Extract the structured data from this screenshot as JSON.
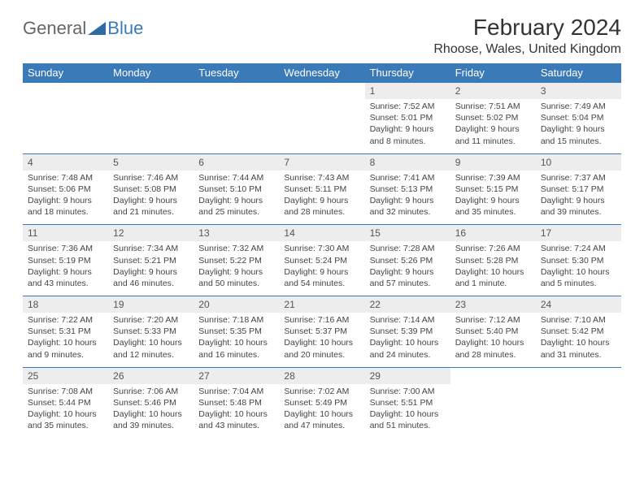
{
  "brand": {
    "part1": "General",
    "part2": "Blue"
  },
  "title": "February 2024",
  "location": "Rhoose, Wales, United Kingdom",
  "colors": {
    "header_bg": "#3a7ab8",
    "header_text": "#ffffff",
    "daynum_bg": "#ededed",
    "grid_border": "#3a7ab8",
    "text": "#333333"
  },
  "columns": [
    "Sunday",
    "Monday",
    "Tuesday",
    "Wednesday",
    "Thursday",
    "Friday",
    "Saturday"
  ],
  "weeks": [
    [
      null,
      null,
      null,
      null,
      {
        "n": "1",
        "sr": "7:52 AM",
        "ss": "5:01 PM",
        "dl": "Daylight: 9 hours and 8 minutes."
      },
      {
        "n": "2",
        "sr": "7:51 AM",
        "ss": "5:02 PM",
        "dl": "Daylight: 9 hours and 11 minutes."
      },
      {
        "n": "3",
        "sr": "7:49 AM",
        "ss": "5:04 PM",
        "dl": "Daylight: 9 hours and 15 minutes."
      }
    ],
    [
      {
        "n": "4",
        "sr": "7:48 AM",
        "ss": "5:06 PM",
        "dl": "Daylight: 9 hours and 18 minutes."
      },
      {
        "n": "5",
        "sr": "7:46 AM",
        "ss": "5:08 PM",
        "dl": "Daylight: 9 hours and 21 minutes."
      },
      {
        "n": "6",
        "sr": "7:44 AM",
        "ss": "5:10 PM",
        "dl": "Daylight: 9 hours and 25 minutes."
      },
      {
        "n": "7",
        "sr": "7:43 AM",
        "ss": "5:11 PM",
        "dl": "Daylight: 9 hours and 28 minutes."
      },
      {
        "n": "8",
        "sr": "7:41 AM",
        "ss": "5:13 PM",
        "dl": "Daylight: 9 hours and 32 minutes."
      },
      {
        "n": "9",
        "sr": "7:39 AM",
        "ss": "5:15 PM",
        "dl": "Daylight: 9 hours and 35 minutes."
      },
      {
        "n": "10",
        "sr": "7:37 AM",
        "ss": "5:17 PM",
        "dl": "Daylight: 9 hours and 39 minutes."
      }
    ],
    [
      {
        "n": "11",
        "sr": "7:36 AM",
        "ss": "5:19 PM",
        "dl": "Daylight: 9 hours and 43 minutes."
      },
      {
        "n": "12",
        "sr": "7:34 AM",
        "ss": "5:21 PM",
        "dl": "Daylight: 9 hours and 46 minutes."
      },
      {
        "n": "13",
        "sr": "7:32 AM",
        "ss": "5:22 PM",
        "dl": "Daylight: 9 hours and 50 minutes."
      },
      {
        "n": "14",
        "sr": "7:30 AM",
        "ss": "5:24 PM",
        "dl": "Daylight: 9 hours and 54 minutes."
      },
      {
        "n": "15",
        "sr": "7:28 AM",
        "ss": "5:26 PM",
        "dl": "Daylight: 9 hours and 57 minutes."
      },
      {
        "n": "16",
        "sr": "7:26 AM",
        "ss": "5:28 PM",
        "dl": "Daylight: 10 hours and 1 minute."
      },
      {
        "n": "17",
        "sr": "7:24 AM",
        "ss": "5:30 PM",
        "dl": "Daylight: 10 hours and 5 minutes."
      }
    ],
    [
      {
        "n": "18",
        "sr": "7:22 AM",
        "ss": "5:31 PM",
        "dl": "Daylight: 10 hours and 9 minutes."
      },
      {
        "n": "19",
        "sr": "7:20 AM",
        "ss": "5:33 PM",
        "dl": "Daylight: 10 hours and 12 minutes."
      },
      {
        "n": "20",
        "sr": "7:18 AM",
        "ss": "5:35 PM",
        "dl": "Daylight: 10 hours and 16 minutes."
      },
      {
        "n": "21",
        "sr": "7:16 AM",
        "ss": "5:37 PM",
        "dl": "Daylight: 10 hours and 20 minutes."
      },
      {
        "n": "22",
        "sr": "7:14 AM",
        "ss": "5:39 PM",
        "dl": "Daylight: 10 hours and 24 minutes."
      },
      {
        "n": "23",
        "sr": "7:12 AM",
        "ss": "5:40 PM",
        "dl": "Daylight: 10 hours and 28 minutes."
      },
      {
        "n": "24",
        "sr": "7:10 AM",
        "ss": "5:42 PM",
        "dl": "Daylight: 10 hours and 31 minutes."
      }
    ],
    [
      {
        "n": "25",
        "sr": "7:08 AM",
        "ss": "5:44 PM",
        "dl": "Daylight: 10 hours and 35 minutes."
      },
      {
        "n": "26",
        "sr": "7:06 AM",
        "ss": "5:46 PM",
        "dl": "Daylight: 10 hours and 39 minutes."
      },
      {
        "n": "27",
        "sr": "7:04 AM",
        "ss": "5:48 PM",
        "dl": "Daylight: 10 hours and 43 minutes."
      },
      {
        "n": "28",
        "sr": "7:02 AM",
        "ss": "5:49 PM",
        "dl": "Daylight: 10 hours and 47 minutes."
      },
      {
        "n": "29",
        "sr": "7:00 AM",
        "ss": "5:51 PM",
        "dl": "Daylight: 10 hours and 51 minutes."
      },
      null,
      null
    ]
  ]
}
